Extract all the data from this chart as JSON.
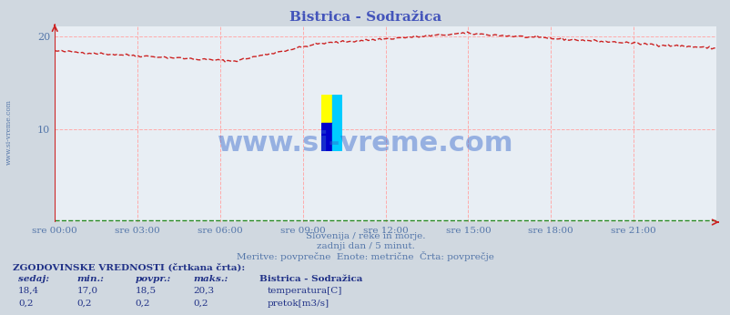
{
  "title": "Bistrica - Sodražica",
  "title_color": "#4455bb",
  "bg_color": "#d0d8e0",
  "plot_bg_color": "#e8eef4",
  "grid_color": "#ffaaaa",
  "xticklabels": [
    "sre 00:00",
    "sre 03:00",
    "sre 06:00",
    "sre 09:00",
    "sre 12:00",
    "sre 15:00",
    "sre 18:00",
    "sre 21:00"
  ],
  "xtick_color": "#5577aa",
  "ytick_color": "#5577aa",
  "ylim": [
    0,
    21
  ],
  "yticks": [
    10,
    20
  ],
  "temp_color": "#cc2222",
  "flow_color": "#228822",
  "line_width": 1.0,
  "watermark_text": "www.si-vreme.com",
  "watermark_color": "#3366cc",
  "left_text": "www.si-vreme.com",
  "left_text_color": "#5577aa",
  "footer_line1": "Slovenija / reke in morje.",
  "footer_line2": "zadnji dan / 5 minut.",
  "footer_line3": "Meritve: povprečne  Enote: metrične  Črta: povprečje",
  "footer_color": "#5577aa",
  "table_header": "ZGODOVINSKE VREDNOSTI (črtkana črta):",
  "col_headers": [
    "sedaj:",
    "min.:",
    "povpr.:",
    "maks.:"
  ],
  "temp_row": [
    "18,4",
    "17,0",
    "18,5",
    "20,3"
  ],
  "flow_row": [
    "0,2",
    "0,2",
    "0,2",
    "0,2"
  ],
  "station_label": "Bistrica - Sodražica",
  "temp_label": "temperatura[C]",
  "flow_label": "pretok[m3/s]",
  "table_color": "#223388",
  "num_points": 288,
  "flow_value": 0.2
}
